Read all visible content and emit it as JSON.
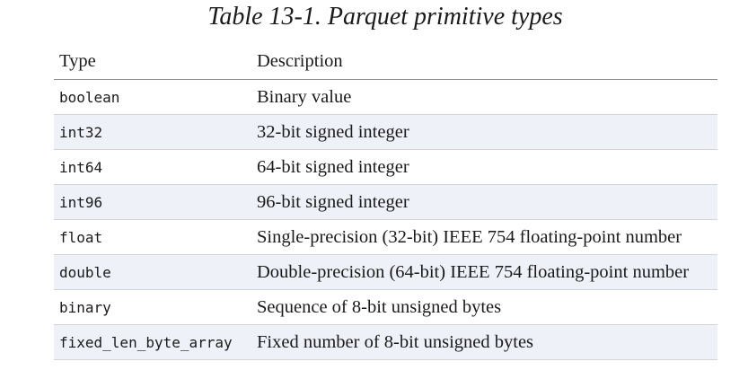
{
  "caption": "Table 13-1. Parquet primitive types",
  "table": {
    "headers": {
      "type": "Type",
      "description": "Description"
    },
    "rows": [
      {
        "type": "boolean",
        "description": "Binary value"
      },
      {
        "type": "int32",
        "description": "32-bit signed integer"
      },
      {
        "type": "int64",
        "description": "64-bit signed integer"
      },
      {
        "type": "int96",
        "description": "96-bit signed integer"
      },
      {
        "type": "float",
        "description": "Single-precision (32-bit) IEEE 754 floating-point number"
      },
      {
        "type": "double",
        "description": "Double-precision (64-bit) IEEE 754 floating-point number"
      },
      {
        "type": "binary",
        "description": "Sequence of 8-bit unsigned bytes"
      },
      {
        "type": "fixed_len_byte_array",
        "description": "Fixed number of 8-bit unsigned bytes"
      }
    ]
  },
  "colors": {
    "stripe": "#eef2f8",
    "header_rule": "#8e8e8e",
    "row_rule": "#d4d4d4"
  }
}
